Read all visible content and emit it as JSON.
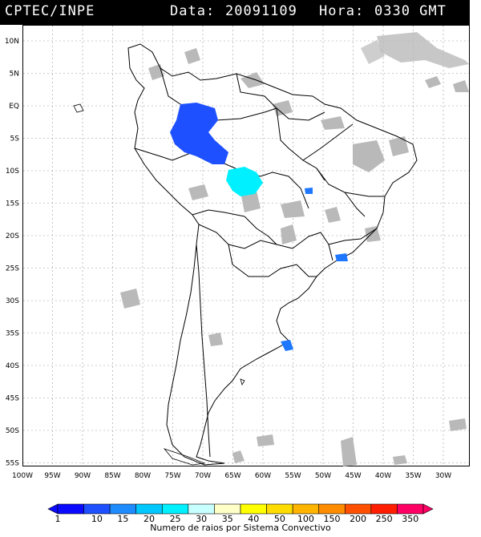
{
  "header": {
    "source": "CPTEC/INPE",
    "date_label": "Data:",
    "date": "20091109",
    "time_label": "Hora:",
    "time": "0330 GMT"
  },
  "map": {
    "lat_labels": [
      "10N",
      "5N",
      "EQ",
      "5S",
      "10S",
      "15S",
      "20S",
      "25S",
      "30S",
      "35S",
      "40S",
      "45S",
      "50S",
      "55S"
    ],
    "lon_labels": [
      "100W",
      "95W",
      "90W",
      "85W",
      "80W",
      "75W",
      "70W",
      "65W",
      "60W",
      "55W",
      "50W",
      "45W",
      "40W",
      "35W",
      "30W"
    ],
    "land_color": "#ffffff",
    "border_color": "#000000",
    "cloud_color": "#b4b4b4",
    "strike_clusters": [
      {
        "name": "amazon-west",
        "color": "#1e50ff"
      },
      {
        "name": "rondonia",
        "color": "#00f0ff"
      },
      {
        "name": "goias",
        "color": "#1e78ff"
      },
      {
        "name": "rio",
        "color": "#1e78ff"
      },
      {
        "name": "rio-de-la-plata",
        "color": "#1e78ff"
      }
    ]
  },
  "colorbar": {
    "ticks": [
      "1",
      "10",
      "15",
      "20",
      "25",
      "30",
      "35",
      "40",
      "50",
      "100",
      "150",
      "200",
      "250",
      "350"
    ],
    "colors": [
      "#0a0aff",
      "#1e50ff",
      "#1e8cff",
      "#00c8ff",
      "#00f0ff",
      "#c8ffff",
      "#ffffc8",
      "#ffff00",
      "#ffdc00",
      "#ffb400",
      "#ff8c00",
      "#ff5000",
      "#ff1e00",
      "#ff0064"
    ],
    "caption": "Numero de raios por Sistema Convectivo"
  }
}
